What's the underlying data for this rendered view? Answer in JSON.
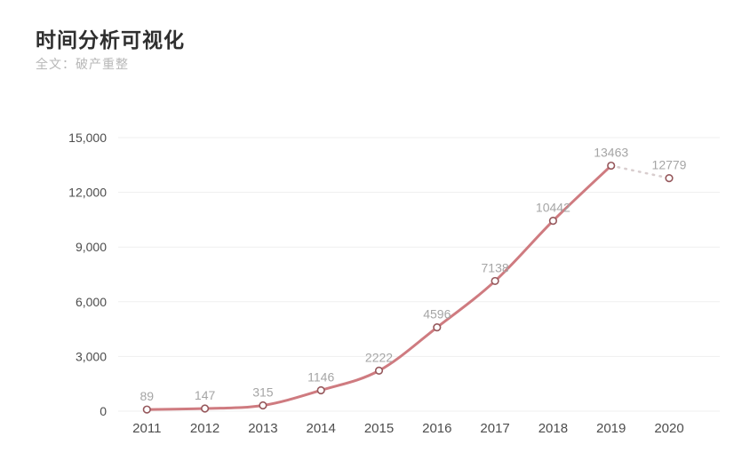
{
  "header": {
    "title": "时间分析可视化",
    "subtitle": "全文：破产重整"
  },
  "chart_data": {
    "type": "line",
    "title": "时间分析可视化",
    "subtitle": "全文：破产重整",
    "categories": [
      "2011",
      "2012",
      "2013",
      "2014",
      "2015",
      "2016",
      "2017",
      "2018",
      "2019",
      "2020"
    ],
    "values": [
      89,
      147,
      315,
      1146,
      2222,
      4596,
      7138,
      10442,
      13463,
      12779
    ],
    "data_labels": [
      "89",
      "147",
      "315",
      "1146",
      "2222",
      "4596",
      "7138",
      "10442",
      "13463",
      "12779"
    ],
    "y_ticks": [
      0,
      3000,
      6000,
      9000,
      12000,
      15000
    ],
    "y_tick_labels": [
      "0",
      "3,000",
      "6,000",
      "9,000",
      "12,000",
      "15,000"
    ],
    "ylim": [
      0,
      15000
    ],
    "xlabel": "",
    "ylabel": "",
    "grid": true,
    "legend": "none",
    "solid_through_index": 8,
    "dashed_segment": {
      "from": "2019",
      "to": "2020",
      "style": "dotted"
    },
    "colors": {
      "line": "#cf7b80",
      "dashed_line": "#d8cdce",
      "marker_stroke": "#96585c",
      "marker_fill": "#ffffff",
      "grid_line": "#efefef",
      "axis_label": "#4d4d4d",
      "data_label": "#a5a5a5",
      "title": "#2f2f2f",
      "subtitle": "#b7b7b7",
      "background": "#ffffff"
    }
  }
}
